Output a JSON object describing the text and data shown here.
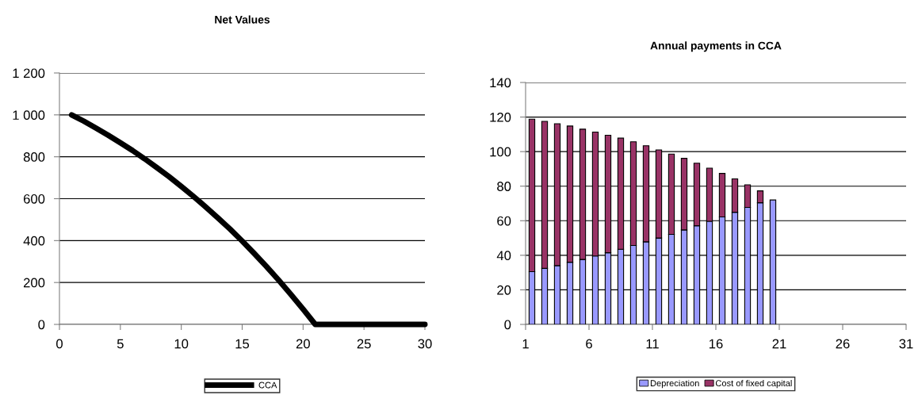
{
  "chart_data": [
    {
      "type": "line",
      "title": "Net Values",
      "x": [
        1,
        2,
        3,
        4,
        5,
        6,
        7,
        8,
        9,
        10,
        11,
        12,
        13,
        14,
        15,
        16,
        17,
        18,
        19,
        20,
        21,
        22,
        23,
        24,
        25,
        26,
        27,
        28,
        29,
        30
      ],
      "series": [
        {
          "name": "CCA",
          "color": "#000000",
          "values": [
            1000,
            970,
            937,
            903,
            867,
            830,
            790,
            748,
            705,
            659,
            611,
            561,
            509,
            455,
            398,
            338,
            276,
            211,
            143,
            73,
            0,
            0,
            0,
            0,
            0,
            0,
            0,
            0,
            0,
            0
          ]
        }
      ],
      "xlim": [
        0,
        30
      ],
      "xticks": [
        0,
        5,
        10,
        15,
        20,
        25,
        30
      ],
      "ylim": [
        0,
        1200
      ],
      "yticks": [
        0,
        {
          "value": 200,
          "label": "200"
        },
        {
          "value": 400,
          "label": "400"
        },
        {
          "value": 600,
          "label": "600"
        },
        {
          "value": 800,
          "label": "800"
        },
        {
          "value": 1000,
          "label": "1 000"
        },
        {
          "value": 1200,
          "label": "1 200"
        }
      ],
      "grid": "y",
      "legend": "bottom",
      "marker": "none",
      "line_style": "solid"
    },
    {
      "type": "bar",
      "title": "Annual payments in CCA",
      "stacked": true,
      "x": [
        1.5,
        2.5,
        3.5,
        4.5,
        5.5,
        6.5,
        7.5,
        8.5,
        9.5,
        10.5,
        11.5,
        12.5,
        13.5,
        14.5,
        15.5,
        16.5,
        17.5,
        18.5,
        19.5,
        20.5
      ],
      "series": [
        {
          "name": "Depreciation",
          "color": "#9999ff",
          "values": [
            30.5,
            32.4,
            34,
            36,
            37.6,
            39.6,
            41.5,
            43.5,
            45.7,
            47.8,
            50,
            52.1,
            54.7,
            57.1,
            59.7,
            62.2,
            64.9,
            67.7,
            70.4,
            72
          ]
        },
        {
          "name": "Cost of fixed capital",
          "color": "#993366",
          "values": [
            88.3,
            85.1,
            82.1,
            78.8,
            75.4,
            71.7,
            68,
            64.3,
            60,
            55.6,
            51,
            46.5,
            41.4,
            36.2,
            30.7,
            25.2,
            19.3,
            13.1,
            6.9,
            null
          ]
        }
      ],
      "xlim": [
        1,
        31
      ],
      "xticks": [
        1,
        6,
        11,
        16,
        21,
        26,
        31
      ],
      "ylim": [
        0,
        140
      ],
      "yticks": [
        0,
        20,
        40,
        60,
        80,
        100,
        120,
        140
      ],
      "grid": "y",
      "legend": "bottom"
    }
  ]
}
